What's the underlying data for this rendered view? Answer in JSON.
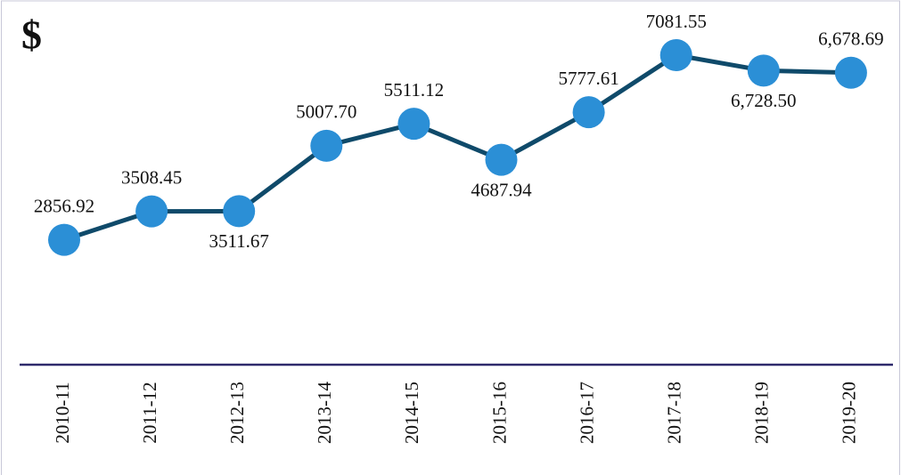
{
  "chart_data": {
    "type": "line",
    "ylabel": "$",
    "categories": [
      "2010-11",
      "2011-12",
      "2012-13",
      "2013-14",
      "2014-15",
      "2015-16",
      "2016-17",
      "2017-18",
      "2018-19",
      "2019-20"
    ],
    "series": [
      {
        "color": "#0f4a6a",
        "marker_color": "#2b8fd6",
        "values": [
          2856.92,
          3508.45,
          3511.67,
          5007.7,
          5511.12,
          4687.94,
          5777.61,
          7081.55,
          6728.5,
          6678.69
        ],
        "value_labels": [
          "2856.92",
          "3508.45",
          "3511.67",
          "5007.70",
          "5511.12",
          "4687.94",
          "5777.61",
          "7081.55",
          "6,728.50",
          "6,678.69"
        ]
      }
    ]
  }
}
